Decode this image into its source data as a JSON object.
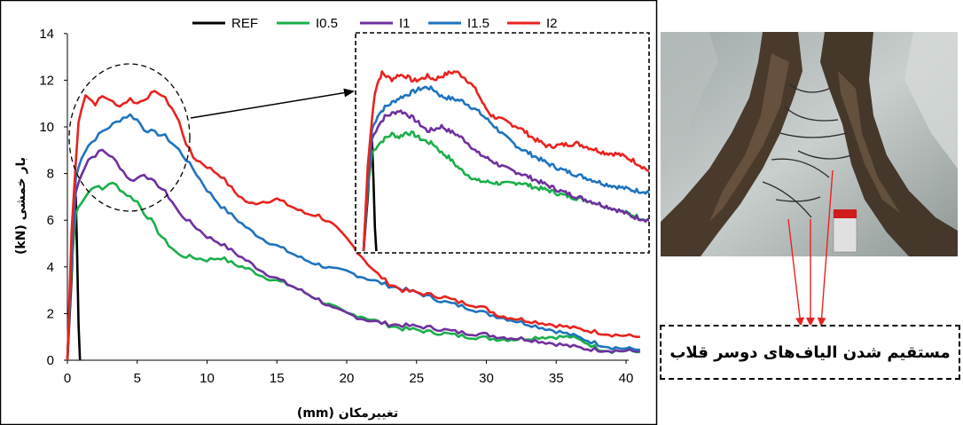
{
  "chart_data": {
    "type": "line",
    "xlabel": "تغییرمکان (mm)",
    "ylabel": "بار خمشی (kN)",
    "xlim": [
      0,
      41
    ],
    "ylim": [
      0,
      14
    ],
    "xticks": [
      "0",
      "5",
      "10",
      "15",
      "20",
      "25",
      "30",
      "35",
      "40"
    ],
    "yticks": [
      "0",
      "2",
      "4",
      "6",
      "8",
      "10",
      "12",
      "14"
    ],
    "legend_position": "top",
    "grid": false,
    "series": [
      {
        "name": "REF",
        "color": "#000000",
        "points": [
          [
            0,
            0
          ],
          [
            0.3,
            3.5
          ],
          [
            0.5,
            6.5
          ],
          [
            0.6,
            7.0
          ],
          [
            0.7,
            4.5
          ],
          [
            0.8,
            1.5
          ],
          [
            0.9,
            0
          ]
        ]
      },
      {
        "name": "I0.5",
        "color": "#1aaf4b",
        "points": [
          [
            0,
            0
          ],
          [
            0.3,
            4.0
          ],
          [
            0.6,
            6.3
          ],
          [
            1,
            6.8
          ],
          [
            1.5,
            7.2
          ],
          [
            2,
            7.5
          ],
          [
            2.5,
            7.3
          ],
          [
            3,
            7.6
          ],
          [
            3.5,
            7.5
          ],
          [
            4,
            7.2
          ],
          [
            4.5,
            7.0
          ],
          [
            5,
            6.8
          ],
          [
            5.5,
            6.3
          ],
          [
            6,
            6.0
          ],
          [
            6.5,
            5.5
          ],
          [
            7,
            5.1
          ],
          [
            7.5,
            4.8
          ],
          [
            8,
            4.5
          ],
          [
            9,
            4.4
          ],
          [
            10,
            4.3
          ],
          [
            11,
            4.4
          ],
          [
            12,
            4.1
          ],
          [
            13,
            3.9
          ],
          [
            14,
            3.6
          ],
          [
            15,
            3.4
          ],
          [
            16,
            3.2
          ],
          [
            17,
            2.9
          ],
          [
            18,
            2.6
          ],
          [
            19,
            2.3
          ],
          [
            20,
            2.0
          ],
          [
            21,
            1.9
          ],
          [
            22,
            1.7
          ],
          [
            23,
            1.5
          ],
          [
            24,
            1.35
          ],
          [
            25,
            1.3
          ],
          [
            26,
            1.2
          ],
          [
            27,
            1.15
          ],
          [
            28,
            1.05
          ],
          [
            29,
            1.0
          ],
          [
            30,
            0.95
          ],
          [
            31,
            0.9
          ],
          [
            32,
            0.9
          ],
          [
            33,
            0.95
          ],
          [
            34,
            1.0
          ],
          [
            35,
            1.0
          ],
          [
            36,
            1.0
          ],
          [
            37,
            0.8
          ],
          [
            38,
            0.5
          ],
          [
            39,
            0.4
          ],
          [
            40,
            0.4
          ],
          [
            41,
            0.35
          ]
        ]
      },
      {
        "name": "I1",
        "color": "#7030a0",
        "points": [
          [
            0,
            0
          ],
          [
            0.3,
            4.5
          ],
          [
            0.6,
            7.2
          ],
          [
            1,
            8.0
          ],
          [
            1.5,
            8.6
          ],
          [
            2,
            8.8
          ],
          [
            2.5,
            9.0
          ],
          [
            3,
            8.8
          ],
          [
            3.5,
            8.5
          ],
          [
            4,
            8.1
          ],
          [
            4.5,
            7.7
          ],
          [
            5,
            7.8
          ],
          [
            5.5,
            8.0
          ],
          [
            6,
            7.7
          ],
          [
            6.5,
            7.5
          ],
          [
            7,
            7.2
          ],
          [
            7.5,
            6.8
          ],
          [
            8,
            6.3
          ],
          [
            9,
            5.8
          ],
          [
            10,
            5.3
          ],
          [
            11,
            5.0
          ],
          [
            12,
            4.6
          ],
          [
            13,
            4.2
          ],
          [
            14,
            3.8
          ],
          [
            15,
            3.5
          ],
          [
            16,
            3.2
          ],
          [
            17,
            2.9
          ],
          [
            18,
            2.6
          ],
          [
            19,
            2.2
          ],
          [
            20,
            2.0
          ],
          [
            21,
            1.8
          ],
          [
            22,
            1.65
          ],
          [
            23,
            1.55
          ],
          [
            24,
            1.5
          ],
          [
            25,
            1.45
          ],
          [
            26,
            1.4
          ],
          [
            27,
            1.3
          ],
          [
            28,
            1.2
          ],
          [
            29,
            1.15
          ],
          [
            30,
            1.1
          ],
          [
            31,
            1.0
          ],
          [
            32,
            0.95
          ],
          [
            33,
            0.9
          ],
          [
            34,
            0.8
          ],
          [
            35,
            0.7
          ],
          [
            36,
            0.6
          ],
          [
            37,
            0.5
          ],
          [
            38,
            0.45
          ],
          [
            39,
            0.42
          ],
          [
            40,
            0.4
          ],
          [
            41,
            0.38
          ]
        ]
      },
      {
        "name": "I1.5",
        "color": "#1f73be",
        "points": [
          [
            0,
            0
          ],
          [
            0.3,
            5.0
          ],
          [
            0.6,
            7.8
          ],
          [
            1,
            8.7
          ],
          [
            1.5,
            9.2
          ],
          [
            2,
            9.5
          ],
          [
            2.5,
            9.8
          ],
          [
            3,
            10.0
          ],
          [
            3.5,
            10.2
          ],
          [
            4,
            10.4
          ],
          [
            4.5,
            10.5
          ],
          [
            5,
            10.3
          ],
          [
            5.5,
            9.9
          ],
          [
            6,
            9.8
          ],
          [
            6.5,
            9.7
          ],
          [
            7,
            9.6
          ],
          [
            7.5,
            9.3
          ],
          [
            8,
            9.0
          ],
          [
            9,
            8.2
          ],
          [
            10,
            7.3
          ],
          [
            11,
            6.6
          ],
          [
            12,
            6.1
          ],
          [
            13,
            5.6
          ],
          [
            14,
            5.2
          ],
          [
            15,
            4.9
          ],
          [
            16,
            4.6
          ],
          [
            17,
            4.3
          ],
          [
            18,
            4.1
          ],
          [
            19,
            3.9
          ],
          [
            20,
            3.8
          ],
          [
            21,
            3.6
          ],
          [
            22,
            3.4
          ],
          [
            23,
            3.2
          ],
          [
            24,
            3.05
          ],
          [
            25,
            2.9
          ],
          [
            26,
            2.7
          ],
          [
            27,
            2.5
          ],
          [
            28,
            2.35
          ],
          [
            29,
            2.2
          ],
          [
            30,
            2.0
          ],
          [
            31,
            1.85
          ],
          [
            32,
            1.7
          ],
          [
            33,
            1.55
          ],
          [
            34,
            1.4
          ],
          [
            35,
            1.25
          ],
          [
            36,
            1.1
          ],
          [
            37,
            0.9
          ],
          [
            38,
            0.7
          ],
          [
            39,
            0.55
          ],
          [
            40,
            0.5
          ],
          [
            41,
            0.45
          ]
        ]
      },
      {
        "name": "I2",
        "color": "#e8231f",
        "points": [
          [
            0,
            0
          ],
          [
            0.3,
            5.5
          ],
          [
            0.6,
            8.5
          ],
          [
            0.8,
            10.2
          ],
          [
            1,
            10.8
          ],
          [
            1.3,
            11.4
          ],
          [
            1.6,
            11.2
          ],
          [
            2,
            11.0
          ],
          [
            2.5,
            11.3
          ],
          [
            3,
            11.2
          ],
          [
            3.5,
            10.9
          ],
          [
            4,
            11.0
          ],
          [
            4.5,
            11.2
          ],
          [
            5,
            11.0
          ],
          [
            5.5,
            11.2
          ],
          [
            6,
            11.4
          ],
          [
            6.5,
            11.5
          ],
          [
            7,
            11.2
          ],
          [
            7.5,
            10.8
          ],
          [
            8,
            10.2
          ],
          [
            8.5,
            9.3
          ],
          [
            9,
            8.7
          ],
          [
            10,
            8.3
          ],
          [
            11,
            7.9
          ],
          [
            12,
            7.2
          ],
          [
            13,
            6.7
          ],
          [
            14,
            6.8
          ],
          [
            15,
            6.9
          ],
          [
            16,
            6.6
          ],
          [
            17,
            6.3
          ],
          [
            18,
            6.2
          ],
          [
            19,
            5.8
          ],
          [
            20,
            5.2
          ],
          [
            21,
            4.5
          ],
          [
            22,
            3.8
          ],
          [
            23,
            3.3
          ],
          [
            24,
            3.0
          ],
          [
            25,
            2.9
          ],
          [
            26,
            2.8
          ],
          [
            27,
            2.7
          ],
          [
            28,
            2.5
          ],
          [
            29,
            2.4
          ],
          [
            30,
            2.2
          ],
          [
            31,
            1.9
          ],
          [
            32,
            1.8
          ],
          [
            33,
            1.7
          ],
          [
            34,
            1.6
          ],
          [
            35,
            1.5
          ],
          [
            36,
            1.4
          ],
          [
            37,
            1.3
          ],
          [
            38,
            1.2
          ],
          [
            39,
            1.1
          ],
          [
            40,
            1.05
          ],
          [
            41,
            1.0
          ]
        ]
      }
    ]
  },
  "photo_caption": "مستقیم شدن الیاف‌های دوسر قلاب"
}
